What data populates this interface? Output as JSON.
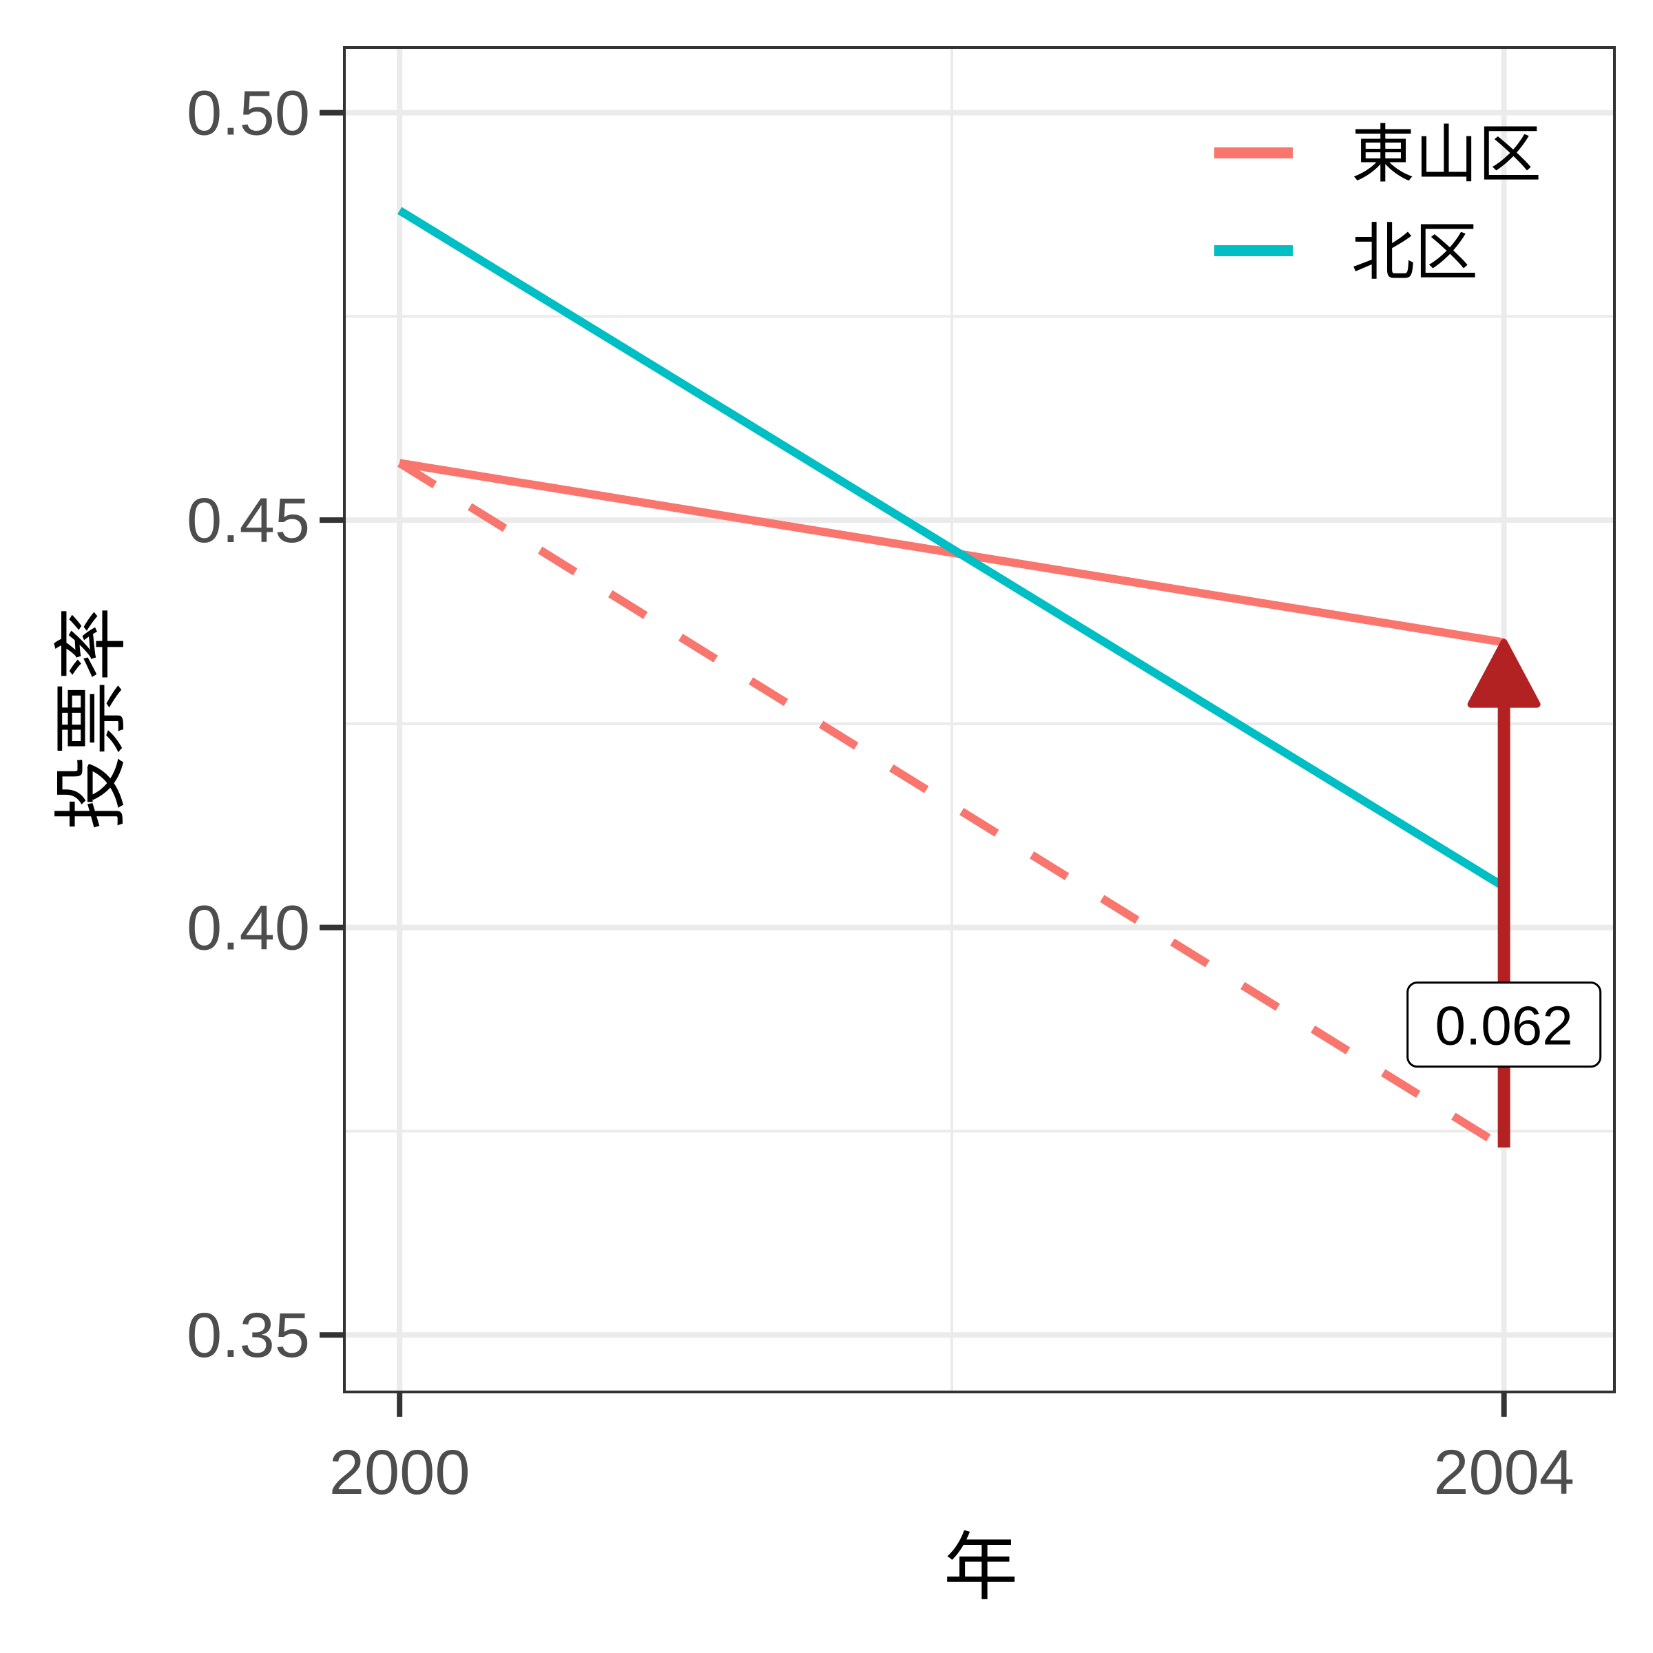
{
  "chart_data": {
    "type": "line",
    "xlabel": "年",
    "ylabel": "投票率",
    "xlim": [
      1999.8,
      2004.4
    ],
    "ylim": [
      0.343,
      0.508
    ],
    "x_ticks": [
      2000,
      2004
    ],
    "x_minor_ticks": [
      2002
    ],
    "y_ticks": [
      0.35,
      0.4,
      0.45,
      0.5
    ],
    "y_tick_labels": [
      "0.35",
      "0.40",
      "0.45",
      "0.50"
    ],
    "y_minor_ticks": [
      0.375,
      0.425,
      0.475
    ],
    "grid": true,
    "legend_position": "top-right",
    "series": [
      {
        "name": "東山区",
        "color": "#F8766D",
        "style": "solid",
        "x": [
          2000,
          2004
        ],
        "y": [
          0.457,
          0.435
        ]
      },
      {
        "name": "北区",
        "color": "#00BFC4",
        "style": "solid",
        "x": [
          2000,
          2004
        ],
        "y": [
          0.488,
          0.405
        ]
      }
    ],
    "counterfactual": {
      "color": "#F8766D",
      "style": "dashed",
      "x": [
        2000,
        2004
      ],
      "y": [
        0.457,
        0.373
      ]
    },
    "annotation": {
      "type": "arrow",
      "color": "#B22222",
      "x": 2004,
      "y_from": 0.373,
      "y_to": 0.435,
      "label": "0.062",
      "label_y": 0.388
    }
  }
}
